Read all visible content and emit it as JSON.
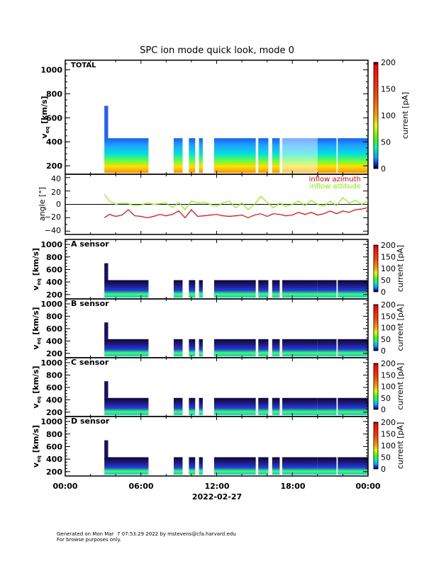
{
  "chart_data": {
    "type": "heatmap",
    "title": "SPC ion mode quick look, mode 0",
    "xlabel": "2022-02-27",
    "x_ticks": [
      "00:00",
      "06:00",
      "12:00",
      "18:00",
      "00:00"
    ],
    "x_range_hours": [
      0,
      24
    ],
    "colorbar": {
      "label": "current [pA]",
      "ticks_total": [
        "0",
        "50",
        "100",
        "150",
        "200"
      ],
      "ticks_sensor": [
        "0",
        "50",
        "100",
        "150",
        "200"
      ],
      "range": [
        0,
        200
      ]
    },
    "panels": [
      {
        "label": "TOTAL",
        "ylabel_main": "v",
        "ylabel_sub": "eq",
        "ylabel_unit": "[km/s]",
        "yticks": [
          "200",
          "400",
          "600",
          "800",
          "1000"
        ],
        "ylim": [
          130,
          1080
        ],
        "style": "total"
      },
      {
        "label": "A sensor",
        "ylabel_main": "v",
        "ylabel_sub": "eq",
        "ylabel_unit": "[km/s]",
        "yticks": [
          "200",
          "400",
          "600",
          "800",
          "1000"
        ],
        "ylim": [
          130,
          1080
        ],
        "style": "sensor"
      },
      {
        "label": "B sensor",
        "ylabel_main": "v",
        "ylabel_sub": "eq",
        "ylabel_unit": "[km/s]",
        "yticks": [
          "200",
          "400",
          "600",
          "800",
          "1000"
        ],
        "ylim": [
          130,
          1080
        ],
        "style": "sensor"
      },
      {
        "label": "C sensor",
        "ylabel_main": "v",
        "ylabel_sub": "eq",
        "ylabel_unit": "[km/s]",
        "yticks": [
          "200",
          "400",
          "600",
          "800",
          "1000"
        ],
        "ylim": [
          130,
          1080
        ],
        "style": "sensor"
      },
      {
        "label": "D sensor",
        "ylabel_main": "v",
        "ylabel_sub": "eq",
        "ylabel_unit": "[km/s]",
        "yticks": [
          "200",
          "400",
          "600",
          "800",
          "1000"
        ],
        "ylim": [
          130,
          1080
        ],
        "style": "sensor"
      }
    ],
    "data_intervals_hours": [
      [
        3.1,
        6.6
      ],
      [
        8.6,
        9.3
      ],
      [
        9.8,
        10.3
      ],
      [
        10.6,
        10.9
      ],
      [
        11.8,
        15.1
      ],
      [
        15.3,
        16.1
      ],
      [
        16.4,
        17.0
      ],
      [
        17.2,
        20.0
      ],
      [
        20.0,
        21.5
      ],
      [
        21.6,
        24.0
      ]
    ],
    "angle_panel": {
      "ylabel": "angle [°]",
      "yticks": [
        "−40",
        "−20",
        "0",
        "20",
        "40"
      ],
      "ylim": [
        -45,
        45
      ],
      "series": [
        {
          "name": "inflow azimuth",
          "color": "#ff0000",
          "x": [
            3.1,
            3.5,
            4.0,
            4.5,
            5.0,
            5.5,
            6.0,
            6.5,
            7.0,
            7.5,
            8.0,
            8.5,
            9.0,
            9.5,
            10.0,
            10.5,
            11.0,
            11.5,
            12.0,
            12.5,
            13.0,
            13.5,
            14.0,
            14.5,
            15.0,
            15.5,
            16.0,
            16.5,
            17.0,
            17.5,
            18.0,
            18.5,
            19.0,
            19.5,
            20.0,
            20.5,
            21.0,
            21.5,
            22.0,
            22.5,
            23.0,
            23.5,
            24.0
          ],
          "y": [
            -20,
            -15,
            -18,
            -16,
            -8,
            -17,
            -18,
            -20,
            -18,
            -15,
            -17,
            -15,
            -10,
            -20,
            -8,
            -18,
            -17,
            -16,
            -15,
            -17,
            -18,
            -17,
            -16,
            -20,
            -16,
            -14,
            -18,
            -14,
            -15,
            -17,
            -16,
            -12,
            -15,
            -12,
            -16,
            -14,
            -10,
            -14,
            -10,
            -12,
            -8,
            -7,
            -5
          ]
        },
        {
          "name": "inflow attitude",
          "color": "#80ff00",
          "x": [
            3.1,
            3.5,
            4.0,
            4.5,
            5.0,
            5.5,
            6.0,
            6.5,
            7.0,
            7.5,
            8.0,
            8.5,
            9.0,
            9.5,
            10.0,
            10.5,
            11.0,
            11.5,
            12.0,
            12.5,
            13.0,
            13.5,
            14.0,
            14.5,
            15.0,
            15.5,
            16.0,
            16.5,
            17.0,
            17.5,
            18.0,
            18.5,
            19.0,
            19.5,
            20.0,
            20.5,
            21.0,
            21.5,
            22.0,
            22.5,
            23.0,
            23.5,
            24.0
          ],
          "y": [
            15,
            5,
            0,
            2,
            1,
            -2,
            -1,
            2,
            0,
            1,
            2,
            -5,
            3,
            -8,
            5,
            2,
            3,
            0,
            -3,
            2,
            5,
            -5,
            2,
            -8,
            0,
            12,
            3,
            -5,
            2,
            -3,
            0,
            5,
            -2,
            6,
            0,
            -3,
            5,
            -2,
            10,
            2,
            6,
            0,
            5
          ]
        }
      ]
    }
  },
  "footer": {
    "line1": "Generated on Mon Mar  7 07:53:29 2022 by mstevens@cfa.harvard.edu",
    "line2": "For browse purposes only."
  }
}
